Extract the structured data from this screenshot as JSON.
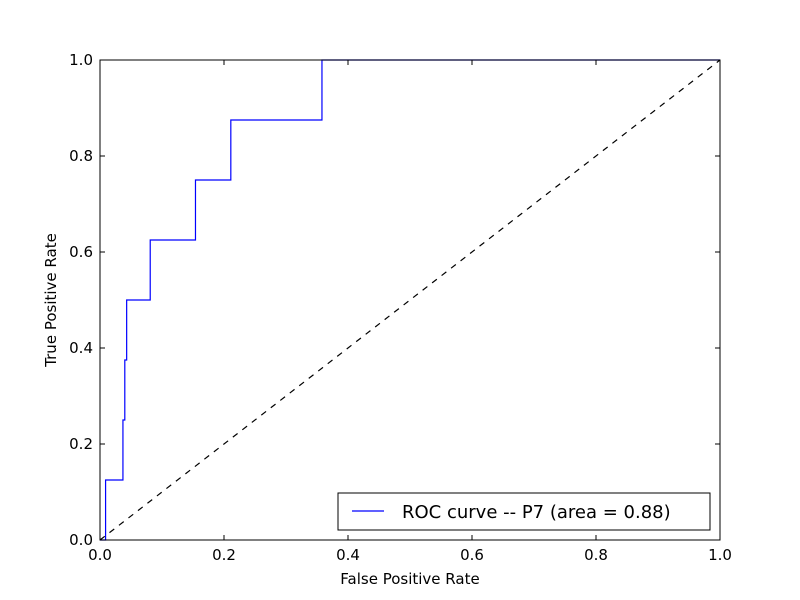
{
  "colors": {
    "background": "#ffffff",
    "frame": "#000000",
    "roc_line": "#0000ff",
    "diagonal_line": "#000000"
  },
  "chart_data": {
    "type": "line",
    "title": "",
    "xlabel": "False Positive Rate",
    "ylabel": "True Positive Rate",
    "xlim": [
      0.0,
      1.0
    ],
    "ylim": [
      0.0,
      1.0
    ],
    "x_ticks": [
      0.0,
      0.2,
      0.4,
      0.6,
      0.8,
      1.0
    ],
    "y_ticks": [
      0.0,
      0.2,
      0.4,
      0.6,
      0.8,
      1.0
    ],
    "x_tick_labels": [
      "0.0",
      "0.2",
      "0.4",
      "0.6",
      "0.8",
      "1.0"
    ],
    "y_tick_labels": [
      "0.0",
      "0.2",
      "0.4",
      "0.6",
      "0.8",
      "1.0"
    ],
    "grid": false,
    "legend": {
      "placement": "lower-right",
      "entries": [
        "ROC curve -- P7 (area = 0.88)"
      ]
    },
    "series": [
      {
        "name": "ROC curve -- P7 (area = 0.88)",
        "style": "solid",
        "x": [
          0.0,
          0.009,
          0.009,
          0.037,
          0.037,
          0.04,
          0.04,
          0.043,
          0.043,
          0.081,
          0.081,
          0.154,
          0.154,
          0.211,
          0.211,
          0.358,
          0.358,
          1.0
        ],
        "y": [
          0.0,
          0.0,
          0.125,
          0.125,
          0.25,
          0.25,
          0.375,
          0.375,
          0.5,
          0.5,
          0.625,
          0.625,
          0.75,
          0.75,
          0.875,
          0.875,
          1.0,
          1.0
        ]
      },
      {
        "name": "",
        "style": "dashed",
        "x": [
          0.0,
          1.0
        ],
        "y": [
          0.0,
          1.0
        ]
      }
    ]
  }
}
